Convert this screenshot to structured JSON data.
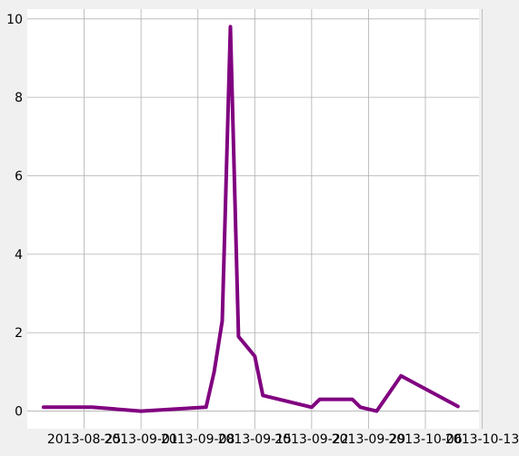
{
  "chart_data": {
    "type": "line",
    "title": "",
    "xlabel": "",
    "ylabel": "",
    "x_tick_labels": [
      "2013-08-25",
      "2013-09-01",
      "2013-09-08",
      "2013-09-15",
      "2013-09-22",
      "2013-09-29",
      "2013-10-06",
      "2013-10-13"
    ],
    "y_tick_labels": [
      "0",
      "2",
      "4",
      "6",
      "8",
      "10"
    ],
    "x_range": [
      "2013-08-18",
      "2013-10-13"
    ],
    "ylim": [
      -0.45,
      10.25
    ],
    "grid": true,
    "legend": "none",
    "series": [
      {
        "color": "#800080",
        "points": [
          {
            "x": "2013-08-20",
            "y": 0.1
          },
          {
            "x": "2013-08-26",
            "y": 0.1
          },
          {
            "x": "2013-09-01",
            "y": 0.0
          },
          {
            "x": "2013-09-09",
            "y": 0.1
          },
          {
            "x": "2013-09-10",
            "y": 1.0
          },
          {
            "x": "2013-09-11",
            "y": 2.3
          },
          {
            "x": "2013-09-12",
            "y": 9.8
          },
          {
            "x": "2013-09-13",
            "y": 1.9
          },
          {
            "x": "2013-09-15",
            "y": 1.4
          },
          {
            "x": "2013-09-16",
            "y": 0.4
          },
          {
            "x": "2013-09-22",
            "y": 0.1
          },
          {
            "x": "2013-09-23",
            "y": 0.3
          },
          {
            "x": "2013-09-27",
            "y": 0.3
          },
          {
            "x": "2013-09-28",
            "y": 0.1
          },
          {
            "x": "2013-09-30",
            "y": 0.0
          },
          {
            "x": "2013-10-03",
            "y": 0.9
          },
          {
            "x": "2013-10-10",
            "y": 0.12
          }
        ]
      }
    ]
  }
}
